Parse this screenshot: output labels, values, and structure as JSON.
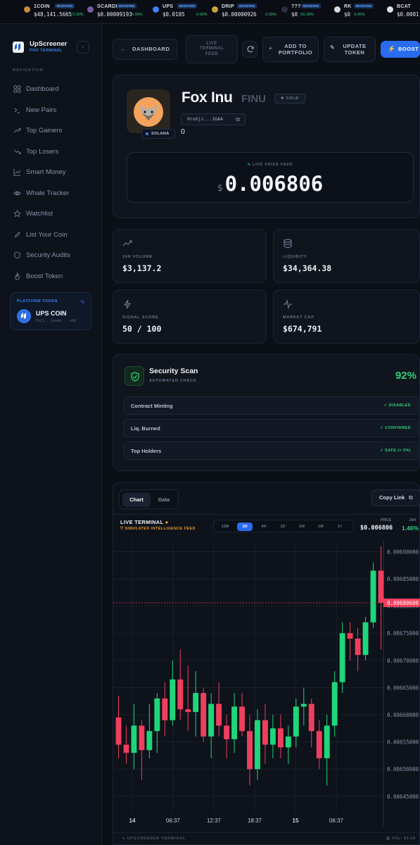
{
  "ticker": [
    {
      "symbol": "1COIN",
      "badge": "BOOSTED",
      "price": "$48,141.5665",
      "change": "0.00%"
    },
    {
      "symbol": "SCARDIO",
      "badge": "BOOSTED",
      "price": "$0.00009193",
      "change": "0.00%"
    },
    {
      "symbol": "UPS",
      "badge": "BOOSTED",
      "price": "$0.0185",
      "change": "0.00%"
    },
    {
      "symbol": "DRIP",
      "badge": "BOOSTED",
      "price": "$0.00000926",
      "change": "0.00%"
    },
    {
      "symbol": "???",
      "badge": "BOOSTED",
      "price": "$0",
      "change": "33.18%"
    },
    {
      "symbol": "RK",
      "badge": "BOOSTED",
      "price": "$0",
      "change": "0.00%"
    },
    {
      "symbol": "BCAT",
      "badge": "BOOSTED",
      "price": "$0.0081",
      "change": "0.00%"
    }
  ],
  "brand": {
    "name": "UpScreener",
    "subtitle": "PRO TERMINAL"
  },
  "nav": {
    "heading": "NAVIGATION",
    "items": [
      {
        "label": "Dashboard",
        "icon": "grid-icon"
      },
      {
        "label": "New Pairs",
        "icon": "terminal-icon"
      },
      {
        "label": "Top Gainers",
        "icon": "trending-up-icon"
      },
      {
        "label": "Top Losers",
        "icon": "trending-down-icon"
      },
      {
        "label": "Smart Money",
        "icon": "chart-icon"
      },
      {
        "label": "Whale Tracker",
        "icon": "eye-icon"
      },
      {
        "label": "Watchlist",
        "icon": "star-icon"
      },
      {
        "label": "List Your Coin",
        "icon": "rocket-icon"
      },
      {
        "label": "Security Audits",
        "icon": "shield-icon"
      },
      {
        "label": "Boost Token",
        "icon": "flame-icon"
      }
    ]
  },
  "platform_token": {
    "heading": "PLATFORM TOKEN",
    "name": "UPS COIN",
    "address": "EnC1.. 6vmAe....nAR"
  },
  "toolbar": {
    "dashboard": "DASHBOARD",
    "live_feed": "LIVE TERMINAL FEED",
    "add_portfolio": "ADD TO PORTFOLIO",
    "update_token": "UPDATE TOKEN",
    "boost": "BOOST"
  },
  "token": {
    "name": "Fox Inu",
    "ticker": "FINU",
    "status": "COLD",
    "address": "9roGjz...1GAA",
    "chain": "SOLANA",
    "secondary_value": "0",
    "live_label": "LIVE PRICE FEED",
    "currency": "$",
    "price": "0.006806"
  },
  "stats": [
    {
      "label": "24H VOLUME",
      "value": "$3,137.2"
    },
    {
      "label": "LIQUIDITY",
      "value": "$34,364.38"
    },
    {
      "label": "SIGNAL SCORE",
      "value": "50 / 100"
    },
    {
      "label": "MARKET CAP",
      "value": "$674,791"
    }
  ],
  "security": {
    "title": "Security Scan",
    "subtitle": "AUTOMATED CHECK",
    "score": "92%",
    "checks": [
      {
        "label": "Contract Minting",
        "status": "DISABLED"
      },
      {
        "label": "Liq. Burned",
        "status": "CONFIRMED"
      },
      {
        "label": "Top Holders",
        "status": "SAFE (< 5%)"
      }
    ]
  },
  "chart_panel": {
    "tabs": [
      "Chart",
      "Data"
    ],
    "active_tab": "Chart",
    "copy_link": "Copy Link",
    "terminal_title": "LIVE TERMINAL",
    "terminal_sub": "SIMULATED INTELLIGENCE FEED",
    "timeframes": [
      "15M",
      "1H",
      "4H",
      "1D",
      "1W",
      "1M",
      "1Y"
    ],
    "active_timeframe": "1H",
    "price_label": "PRICE",
    "price_value": "$0.006806",
    "change_label": "24H",
    "change_value": "1.46%",
    "footer_left": "UPSCREENER TERMINAL",
    "footer_right": "VOL: $3.1K"
  },
  "chart_data": {
    "type": "candlestick",
    "y_ticks": [
      "0.00690000",
      "0.00685000",
      "0.00680000",
      "0.00675000",
      "0.00670000",
      "0.00665000",
      "0.00660000",
      "0.00655000",
      "0.00650000",
      "0.00645000"
    ],
    "ylim": [
      0.00642,
      0.00692
    ],
    "x_ticks": [
      "14",
      "06:37",
      "12:37",
      "18:37",
      "15",
      "06:37"
    ],
    "current_price": "0.00680600",
    "colors": {
      "up": "#1fd67a",
      "down": "#ef3f5e"
    },
    "candles": [
      {
        "o": 0.006595,
        "h": 0.006635,
        "l": 0.00652,
        "c": 0.006545
      },
      {
        "o": 0.006545,
        "h": 0.00658,
        "l": 0.00651,
        "c": 0.00653
      },
      {
        "o": 0.00653,
        "h": 0.00662,
        "l": 0.0065,
        "c": 0.00658
      },
      {
        "o": 0.00658,
        "h": 0.00659,
        "l": 0.00648,
        "c": 0.006535
      },
      {
        "o": 0.006535,
        "h": 0.00662,
        "l": 0.00652,
        "c": 0.00657
      },
      {
        "o": 0.00657,
        "h": 0.00664,
        "l": 0.00653,
        "c": 0.00663
      },
      {
        "o": 0.00663,
        "h": 0.00666,
        "l": 0.00656,
        "c": 0.00659
      },
      {
        "o": 0.00659,
        "h": 0.0067,
        "l": 0.00658,
        "c": 0.006665
      },
      {
        "o": 0.006665,
        "h": 0.00672,
        "l": 0.00659,
        "c": 0.00661
      },
      {
        "o": 0.00661,
        "h": 0.00669,
        "l": 0.00657,
        "c": 0.006605
      },
      {
        "o": 0.006605,
        "h": 0.00668,
        "l": 0.00656,
        "c": 0.00664
      },
      {
        "o": 0.00664,
        "h": 0.00665,
        "l": 0.00655,
        "c": 0.00656
      },
      {
        "o": 0.00656,
        "h": 0.00664,
        "l": 0.00652,
        "c": 0.00662
      },
      {
        "o": 0.00662,
        "h": 0.00666,
        "l": 0.00656,
        "c": 0.00658
      },
      {
        "o": 0.00658,
        "h": 0.0066,
        "l": 0.00652,
        "c": 0.006555
      },
      {
        "o": 0.006555,
        "h": 0.00664,
        "l": 0.00653,
        "c": 0.006615
      },
      {
        "o": 0.006615,
        "h": 0.00664,
        "l": 0.00656,
        "c": 0.00657
      },
      {
        "o": 0.00657,
        "h": 0.0066,
        "l": 0.00647,
        "c": 0.0065
      },
      {
        "o": 0.0065,
        "h": 0.00661,
        "l": 0.00648,
        "c": 0.00659
      },
      {
        "o": 0.00659,
        "h": 0.00662,
        "l": 0.00651,
        "c": 0.006545
      },
      {
        "o": 0.006545,
        "h": 0.0066,
        "l": 0.00652,
        "c": 0.006575
      },
      {
        "o": 0.006575,
        "h": 0.0066,
        "l": 0.00652,
        "c": 0.00654
      },
      {
        "o": 0.00654,
        "h": 0.00658,
        "l": 0.00651,
        "c": 0.00656
      },
      {
        "o": 0.00656,
        "h": 0.00663,
        "l": 0.00654,
        "c": 0.006615
      },
      {
        "o": 0.006615,
        "h": 0.00665,
        "l": 0.00658,
        "c": 0.00662
      },
      {
        "o": 0.00662,
        "h": 0.00663,
        "l": 0.00654,
        "c": 0.00657
      },
      {
        "o": 0.00657,
        "h": 0.00659,
        "l": 0.0065,
        "c": 0.00652
      },
      {
        "o": 0.00652,
        "h": 0.0066,
        "l": 0.00647,
        "c": 0.00658
      },
      {
        "o": 0.00658,
        "h": 0.00668,
        "l": 0.00656,
        "c": 0.00666
      },
      {
        "o": 0.00666,
        "h": 0.00677,
        "l": 0.00664,
        "c": 0.00675
      },
      {
        "o": 0.00675,
        "h": 0.00677,
        "l": 0.0067,
        "c": 0.00674
      },
      {
        "o": 0.00674,
        "h": 0.00676,
        "l": 0.00668,
        "c": 0.00671
      },
      {
        "o": 0.00671,
        "h": 0.00678,
        "l": 0.0067,
        "c": 0.00677
      },
      {
        "o": 0.00677,
        "h": 0.00688,
        "l": 0.00676,
        "c": 0.006865
      },
      {
        "o": 0.006865,
        "h": 0.00691,
        "l": 0.00672,
        "c": 0.006806
      }
    ]
  }
}
